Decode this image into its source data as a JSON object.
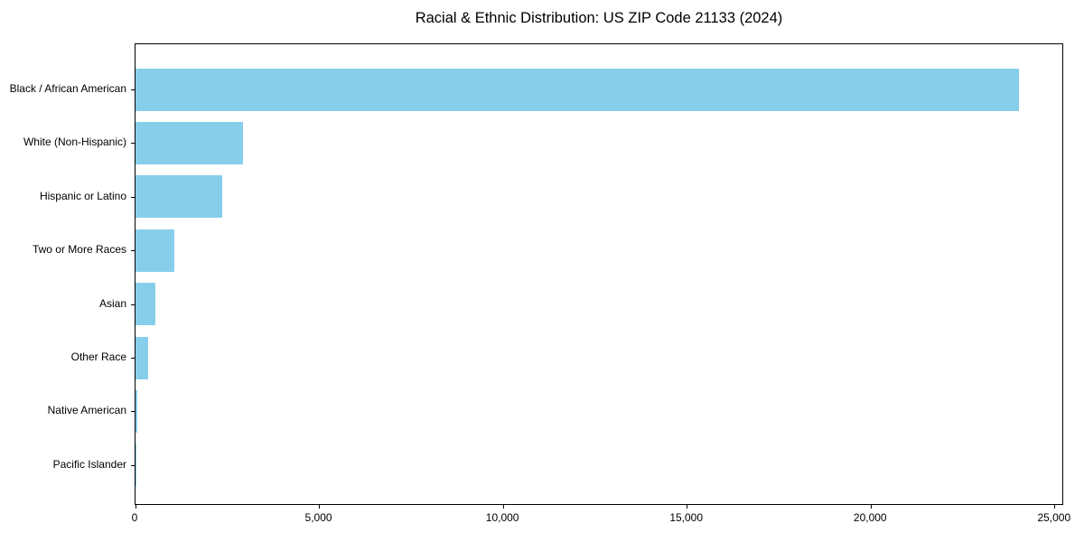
{
  "chart_data": {
    "type": "bar",
    "orientation": "horizontal",
    "title": "Racial & Ethnic Distribution: US ZIP Code 21133 (2024)",
    "categories": [
      "Black / African American",
      "White (Non-Hispanic)",
      "Hispanic or Latino",
      "Two or More Races",
      "Asian",
      "Other Race",
      "Native American",
      "Pacific Islander"
    ],
    "values": [
      24060,
      2920,
      2360,
      1060,
      540,
      350,
      40,
      15
    ],
    "xlabel": "",
    "ylabel": "",
    "xlim": [
      0,
      25250
    ],
    "x_ticks": [
      0,
      5000,
      10000,
      15000,
      20000,
      25000
    ],
    "x_tick_labels": [
      "0",
      "5,000",
      "10,000",
      "15,000",
      "20,000",
      "25,000"
    ],
    "bar_color": "#87CEEB",
    "background_color": "#FFFFFF",
    "grid": false,
    "legend": "none"
  }
}
